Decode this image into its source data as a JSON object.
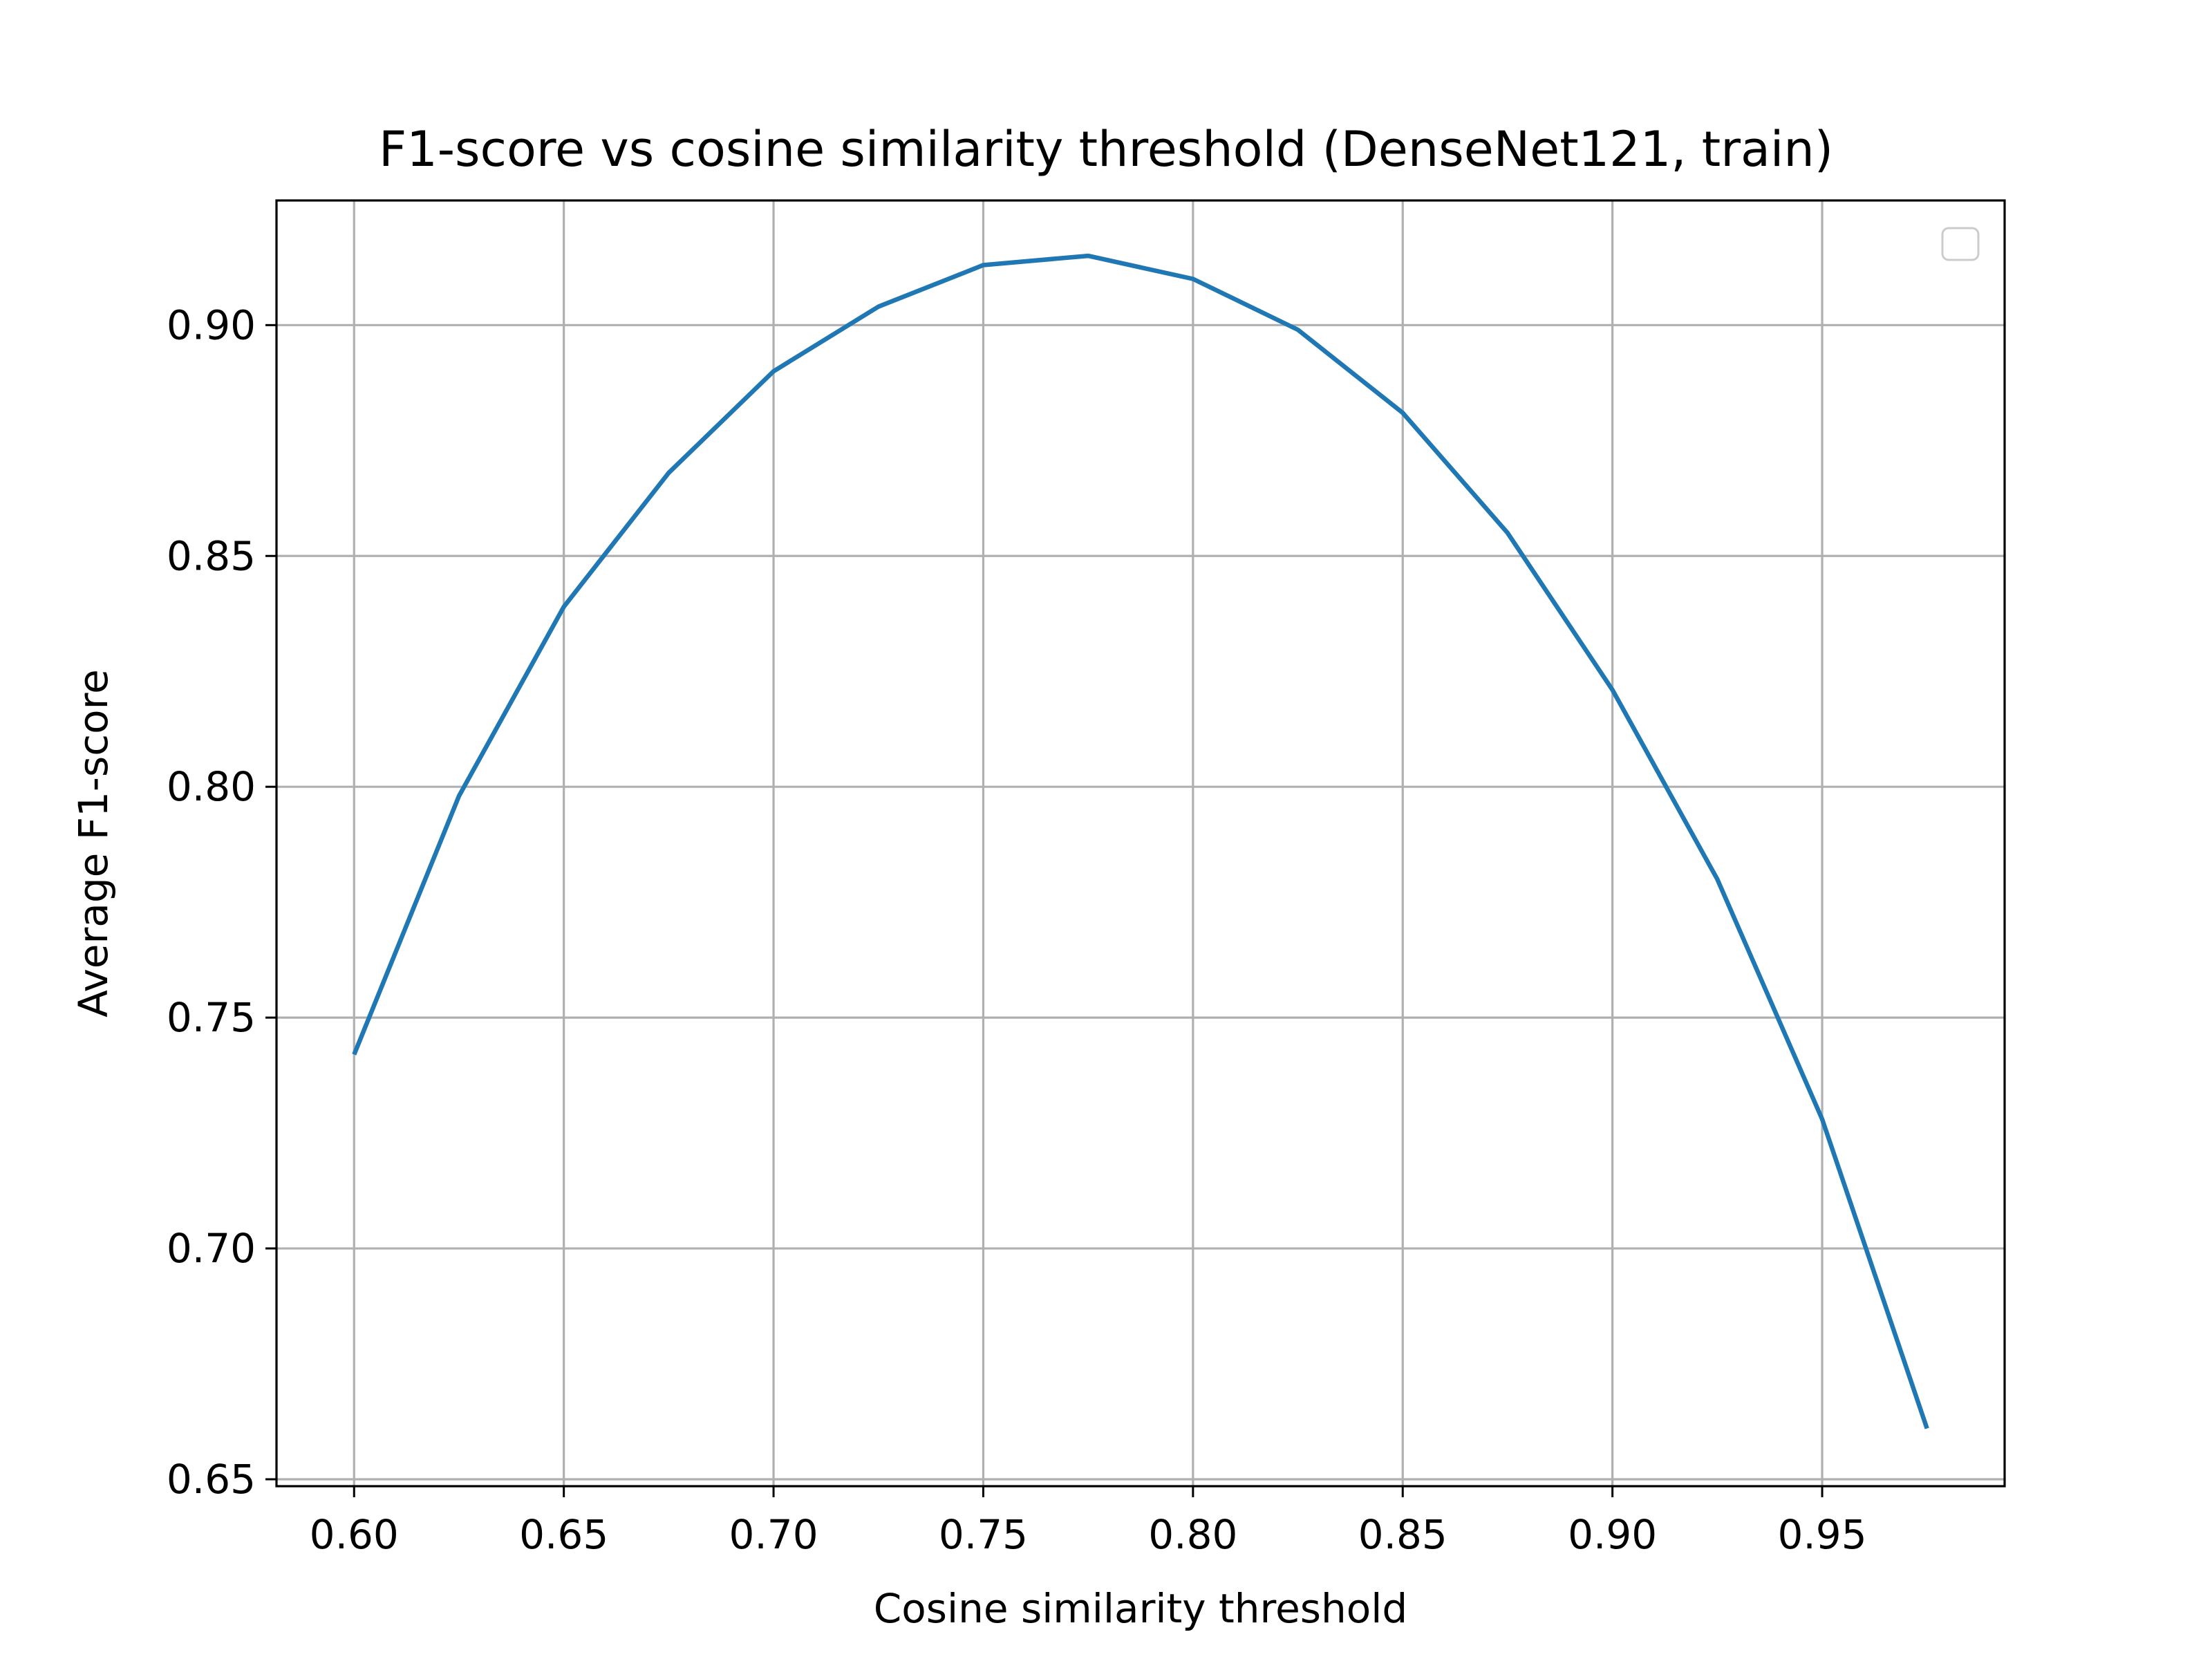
{
  "chart_data": {
    "type": "line",
    "title": "F1-score vs cosine similarity threshold (DenseNet121, train)",
    "xlabel": "Cosine similarity threshold",
    "ylabel": "Average F1-score",
    "xlim": [
      0.5815,
      0.9935
    ],
    "ylim": [
      0.6485,
      0.927
    ],
    "xticks": [
      0.6,
      0.65,
      0.7,
      0.75,
      0.8,
      0.85,
      0.9,
      0.95
    ],
    "xtick_labels": [
      "0.60",
      "0.65",
      "0.70",
      "0.75",
      "0.80",
      "0.85",
      "0.90",
      "0.95"
    ],
    "yticks": [
      0.65,
      0.7,
      0.75,
      0.8,
      0.85,
      0.9
    ],
    "ytick_labels": [
      "0.65",
      "0.70",
      "0.75",
      "0.80",
      "0.85",
      "0.90"
    ],
    "grid": true,
    "legend": {
      "placement": "upper right",
      "entries": []
    },
    "series": [
      {
        "color": "#1f77b4",
        "x": [
          0.6,
          0.625,
          0.65,
          0.675,
          0.7,
          0.725,
          0.75,
          0.775,
          0.8,
          0.825,
          0.85,
          0.875,
          0.9,
          0.925,
          0.95,
          0.975
        ],
        "y": [
          0.742,
          0.798,
          0.839,
          0.868,
          0.89,
          0.904,
          0.913,
          0.915,
          0.91,
          0.899,
          0.881,
          0.855,
          0.821,
          0.78,
          0.728,
          0.661
        ]
      }
    ]
  }
}
